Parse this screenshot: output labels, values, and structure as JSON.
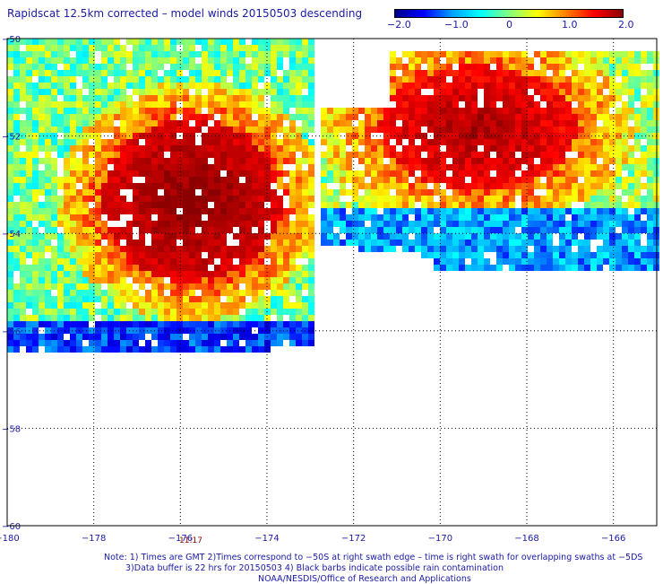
{
  "title": "Rapidscat 12.5km corrected – model winds 20150503 descending",
  "colorbar": {
    "min": -2.0,
    "max": 2.0,
    "labels": [
      "−2.0",
      "−1.0",
      "0",
      "1.0",
      "2.0"
    ],
    "colors": [
      "#00008b",
      "#0000ff",
      "#00a0ff",
      "#00ffff",
      "#80ff80",
      "#ffff00",
      "#ff8000",
      "#ff0000",
      "#8b0000"
    ]
  },
  "map": {
    "lon_range": [
      -180,
      -165
    ],
    "lat_range": [
      -60,
      -50
    ],
    "lon_ticks": [
      -180,
      -178,
      -176,
      -174,
      -172,
      -170,
      -168,
      -166
    ],
    "lon_tick_labels": [
      "−180",
      "−178",
      "−176",
      "−174",
      "−172",
      "−170",
      "−168",
      "−166"
    ],
    "lat_ticks": [
      -50,
      -52,
      -54,
      -56,
      -58,
      -60
    ],
    "lat_tick_labels": [
      "−50",
      "−52",
      "−54",
      "−56",
      "−58",
      "−60"
    ],
    "time_label": "11:17"
  },
  "notes": [
    "Note: 1) Times are GMT 2)Times correspond to −50S at right swath edge – time is right swath for overlapping swaths at −5DS",
    "3)Data buffer is 22 hrs for 20150503 4) Black barbs indicate possible rain contamination",
    "NOAA/NESDIS/Office of Research and Applications"
  ]
}
